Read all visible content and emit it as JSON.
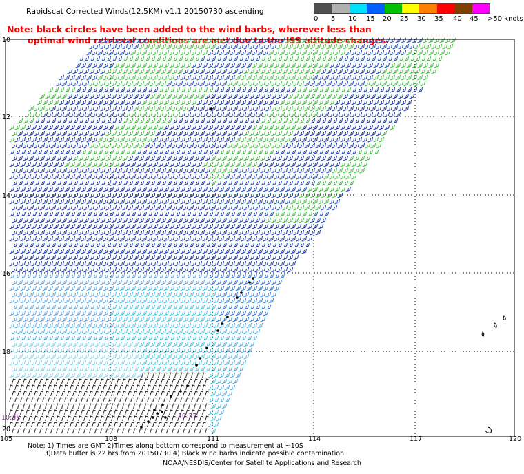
{
  "title": "Rapidscat Corrected Winds(12.5KM) v1.1 20150730 ascending",
  "note_line1": "Note: black circles have been added to the wind barbs, wherever less than",
  "note_line2": "optimal wind retrieval conditions are met due to the ISS altitude changes.",
  "legend": {
    "labels": [
      "0",
      "5",
      "10",
      "15",
      "20",
      "25",
      "30",
      "35",
      "40",
      "45",
      ">50 knots"
    ],
    "colors": [
      "#505050",
      "#b0b0b0",
      "#00e0ff",
      "#0060ff",
      "#00c000",
      "#ffff00",
      "#ff8000",
      "#ff0000",
      "#804000",
      "#ff00ff",
      "#400080"
    ]
  },
  "axes": {
    "lat_labels": [
      "10",
      "12",
      "14",
      "16",
      "18",
      "20"
    ],
    "lon_labels": [
      "105",
      "108",
      "111",
      "114",
      "117",
      "120"
    ]
  },
  "time_labels": [
    "10:38",
    "10:37"
  ],
  "footer_line1": "Note: 1) Times are GMT 2)Times along bottom correspond to measurement at ~10S",
  "footer_line2": "3)Data buffer is 22 hrs from 20150730 4) Black wind barbs indicate possible contamination",
  "credit": "NOAA/NESDIS/Center for Satellite Applications and Research"
}
